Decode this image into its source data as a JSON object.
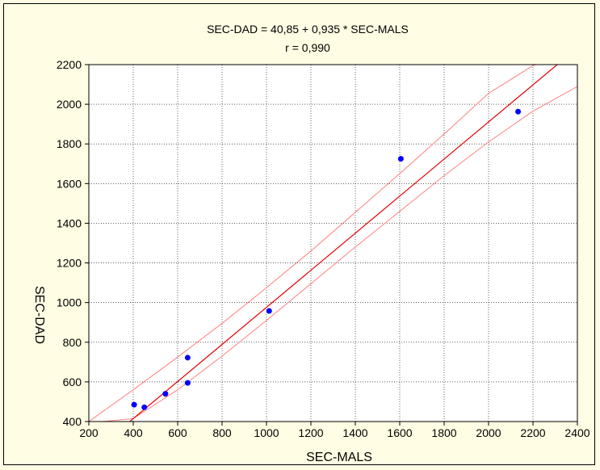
{
  "chart_data": {
    "type": "scatter",
    "title": "SEC-DAD = 40,85 + 0,935 * SEC-MALS",
    "subtitle": "r = 0,990",
    "xlabel": "SEC-MALS",
    "ylabel": "SEC-DAD",
    "xlim": [
      200,
      2400
    ],
    "ylim": [
      400,
      2200
    ],
    "x_ticks": [
      200,
      400,
      600,
      800,
      1000,
      1200,
      1400,
      1600,
      1800,
      2000,
      2200,
      2400
    ],
    "y_ticks": [
      400,
      600,
      800,
      1000,
      1200,
      1400,
      1600,
      1800,
      2000,
      2200
    ],
    "grid": true,
    "regression": {
      "intercept": 40.85,
      "slope": 0.935
    },
    "confidence_band": {
      "upper": {
        "x": [
          200,
          400,
          600,
          800,
          1000,
          1200,
          1400,
          1600,
          1800,
          2000,
          2200,
          2300
        ],
        "y": [
          400,
          560,
          725,
          895,
          1075,
          1260,
          1455,
          1650,
          1850,
          2055,
          2195,
          2230
        ]
      },
      "lower": {
        "x": [
          260,
          400,
          600,
          800,
          1000,
          1200,
          1400,
          1600,
          1800,
          2000,
          2200,
          2400
        ],
        "y": [
          400,
          415,
          560,
          730,
          910,
          1095,
          1280,
          1460,
          1640,
          1810,
          1965,
          2090
        ]
      }
    },
    "points": [
      {
        "x": 404,
        "y": 485
      },
      {
        "x": 450,
        "y": 472
      },
      {
        "x": 545,
        "y": 540
      },
      {
        "x": 645,
        "y": 722
      },
      {
        "x": 645,
        "y": 595
      },
      {
        "x": 1012,
        "y": 958
      },
      {
        "x": 1605,
        "y": 1725
      },
      {
        "x": 2133,
        "y": 1963
      }
    ],
    "colors": {
      "background": "#fffde3",
      "plot_area": "#ffffff",
      "points": "#0000ff",
      "regression_line": "#e00000",
      "confidence_lines": "#ff8080",
      "grid": "#000000"
    }
  }
}
